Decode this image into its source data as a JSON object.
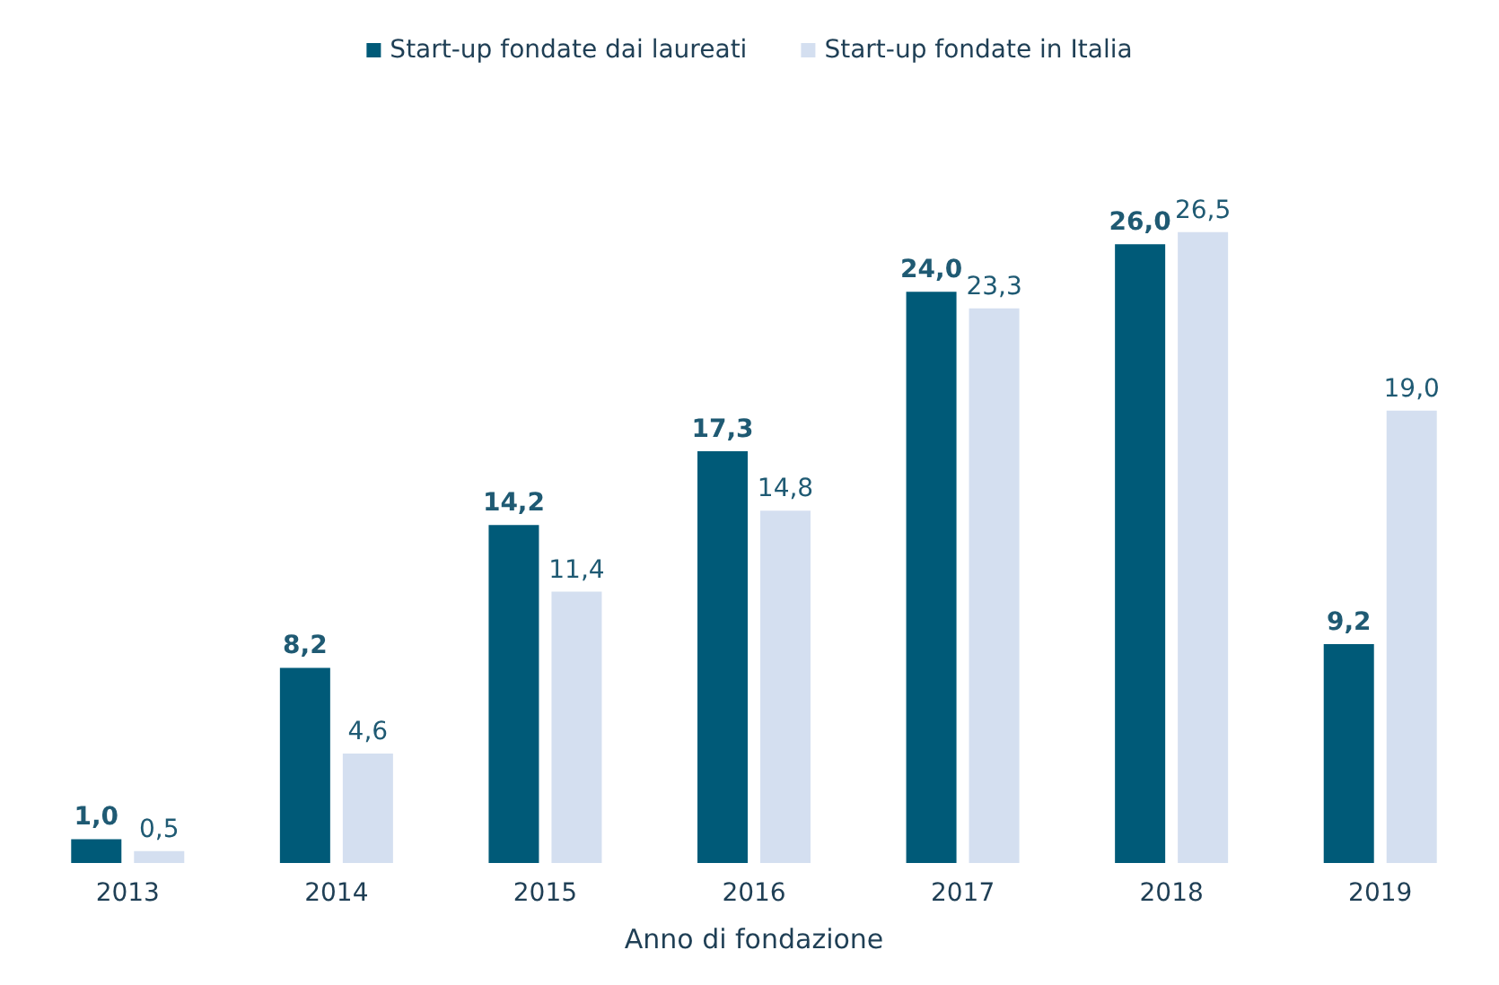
{
  "chart_data": {
    "type": "bar",
    "xlabel": "Anno di fondazione",
    "categories": [
      "2013",
      "2014",
      "2015",
      "2016",
      "2017",
      "2018",
      "2019"
    ],
    "series": [
      {
        "name": "Start-up fondate dai laureati",
        "color": "#005a78",
        "values": [
          1.0,
          8.2,
          14.2,
          17.3,
          24.0,
          26.0,
          9.2
        ],
        "value_labels": [
          "1,0",
          "8,2",
          "14,2",
          "17,3",
          "24,0",
          "26,0",
          "9,2"
        ]
      },
      {
        "name": "Start-up fondate in Italia",
        "color": "#d4dff0",
        "values": [
          0.5,
          4.6,
          11.4,
          14.8,
          23.3,
          26.5,
          19.0
        ],
        "value_labels": [
          "0,5",
          "4,6",
          "11,4",
          "14,8",
          "23,3",
          "26,5",
          "19,0"
        ]
      }
    ],
    "legend": "top"
  }
}
